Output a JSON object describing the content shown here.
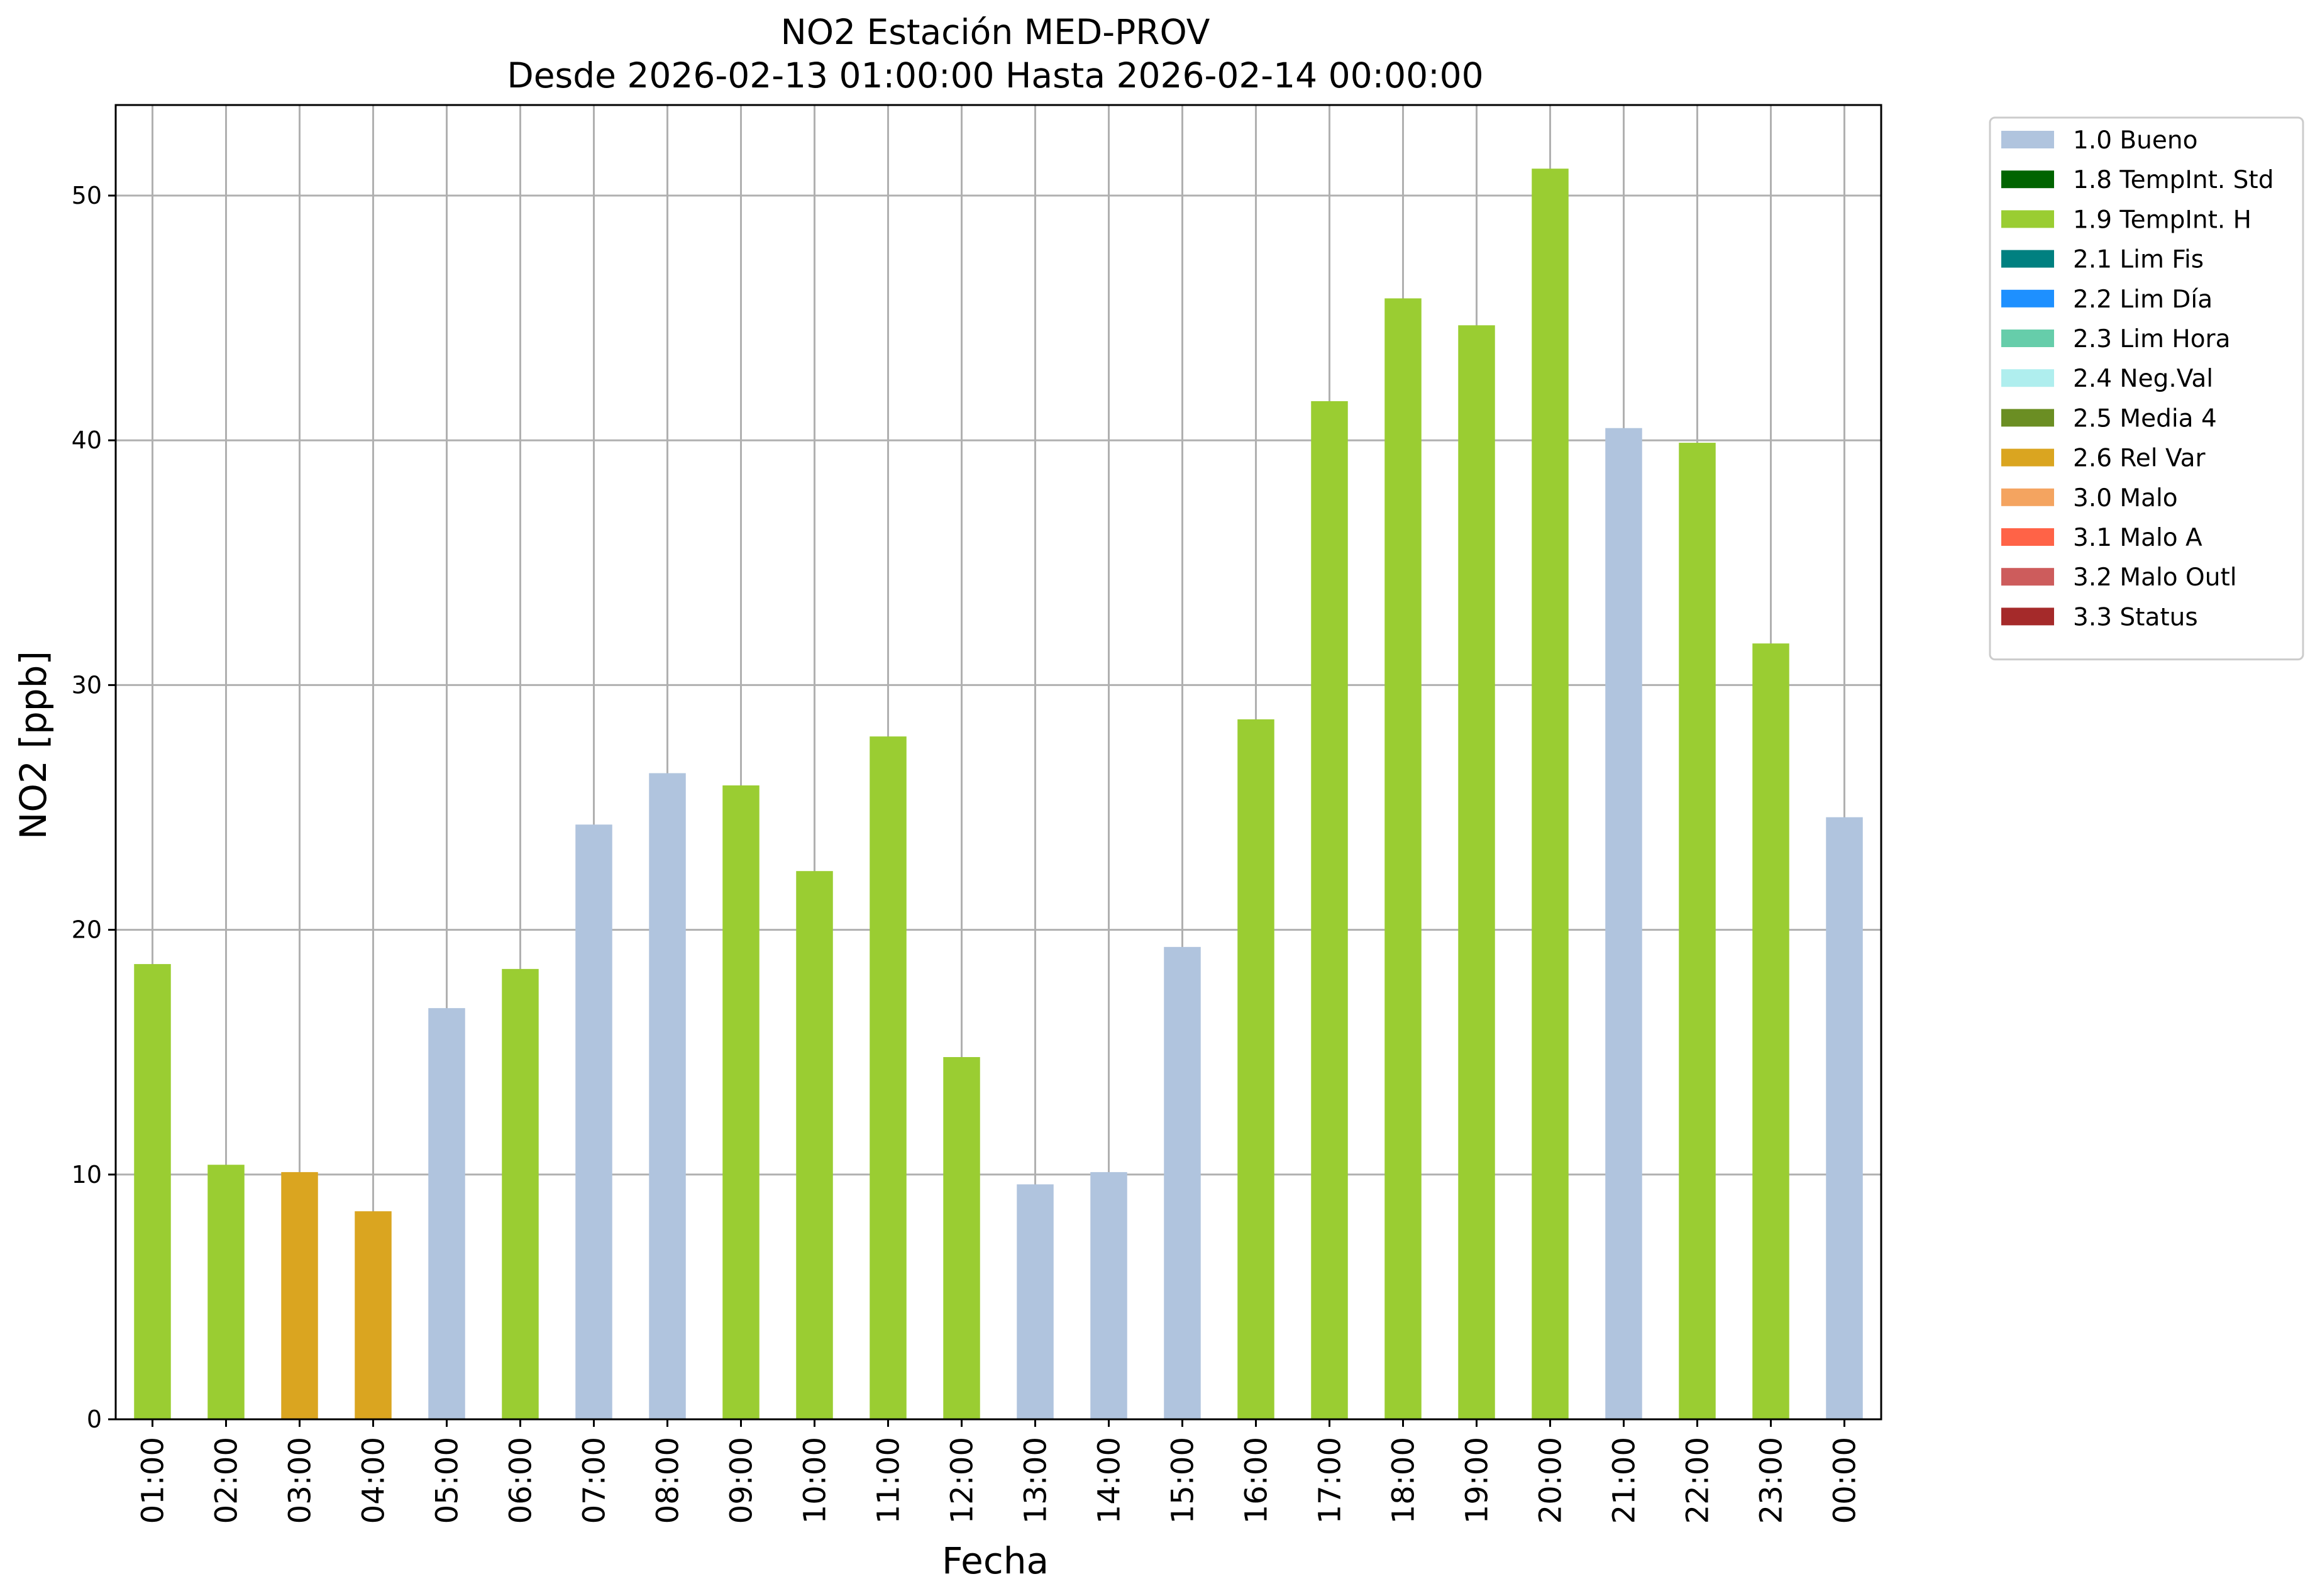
{
  "chart_data": {
    "type": "bar",
    "title": "NO2 Estación MED-PROV",
    "subtitle": "Desde 2026-02-13 01:00:00 Hasta 2026-02-14 00:00:00",
    "xlabel": "Fecha",
    "ylabel": "NO2 [ppb]",
    "ylim": [
      0,
      53.7
    ],
    "yticks": [
      "0",
      "10",
      "20",
      "30",
      "40",
      "50"
    ],
    "grid": true,
    "legend_position": "outside-top-right",
    "categories": [
      "01:00",
      "02:00",
      "03:00",
      "04:00",
      "05:00",
      "06:00",
      "07:00",
      "08:00",
      "09:00",
      "10:00",
      "11:00",
      "12:00",
      "13:00",
      "14:00",
      "15:00",
      "16:00",
      "17:00",
      "18:00",
      "19:00",
      "20:00",
      "21:00",
      "22:00",
      "23:00",
      "00:00"
    ],
    "values": [
      18.6,
      10.4,
      10.1,
      8.5,
      16.8,
      18.4,
      24.3,
      26.4,
      25.9,
      22.4,
      27.9,
      14.8,
      9.6,
      10.1,
      19.3,
      28.6,
      41.6,
      45.8,
      44.7,
      51.1,
      40.5,
      39.9,
      31.7,
      24.6
    ],
    "flags": [
      "1.9",
      "1.9",
      "2.6",
      "2.6",
      "1.0",
      "1.9",
      "1.0",
      "1.0",
      "1.9",
      "1.9",
      "1.9",
      "1.9",
      "1.0",
      "1.0",
      "1.0",
      "1.9",
      "1.9",
      "1.9",
      "1.9",
      "1.9",
      "1.0",
      "1.9",
      "1.9",
      "1.0"
    ],
    "legend": [
      {
        "code": "1.0",
        "label": "1.0 Bueno",
        "color": "#b0c4de"
      },
      {
        "code": "1.8",
        "label": "1.8 TempInt. Std",
        "color": "#006400"
      },
      {
        "code": "1.9",
        "label": "1.9 TempInt. H",
        "color": "#9acd32"
      },
      {
        "code": "2.1",
        "label": "2.1 Lim Fis",
        "color": "#008080"
      },
      {
        "code": "2.2",
        "label": "2.2 Lim Día",
        "color": "#1e90ff"
      },
      {
        "code": "2.3",
        "label": "2.3 Lim Hora",
        "color": "#66cdaa"
      },
      {
        "code": "2.4",
        "label": "2.4 Neg.Val",
        "color": "#afeeee"
      },
      {
        "code": "2.5",
        "label": "2.5 Media 4",
        "color": "#6b8e23"
      },
      {
        "code": "2.6",
        "label": "2.6 Rel Var",
        "color": "#daa520"
      },
      {
        "code": "3.0",
        "label": "3.0 Malo",
        "color": "#f4a460"
      },
      {
        "code": "3.1",
        "label": "3.1 Malo A",
        "color": "#ff6347"
      },
      {
        "code": "3.2",
        "label": "3.2 Malo Outl",
        "color": "#cd5c5c"
      },
      {
        "code": "3.3",
        "label": "3.3 Status",
        "color": "#a52a2a"
      }
    ]
  }
}
